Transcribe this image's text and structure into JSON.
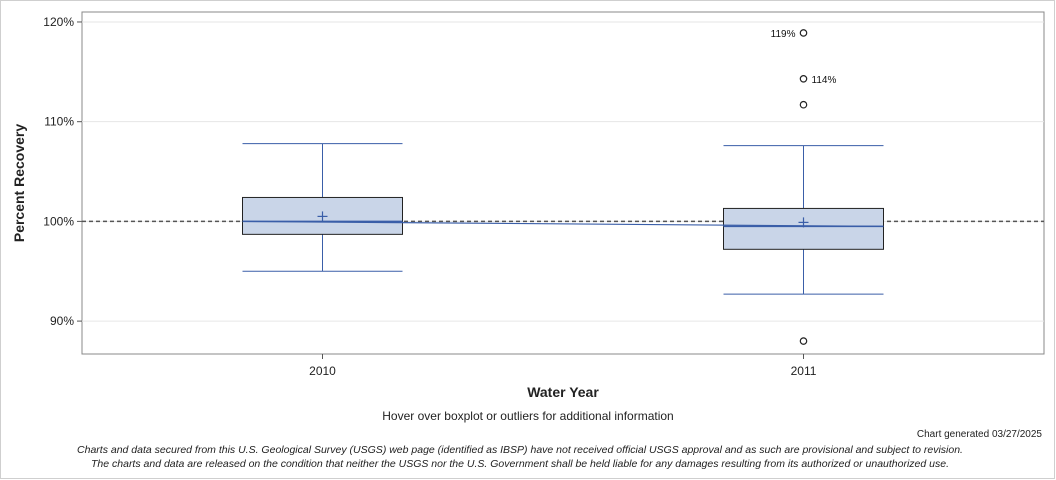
{
  "chart_data": {
    "type": "boxplot",
    "title": "",
    "xlabel": "Water Year",
    "ylabel": "Percent Recovery",
    "ylim": [
      86.7,
      121.0
    ],
    "yticks": [
      90,
      100,
      110,
      120
    ],
    "ytick_labels": [
      "90%",
      "100%",
      "110%",
      "120%"
    ],
    "reference_line": 100,
    "categories": [
      "2010",
      "2011"
    ],
    "boxes": [
      {
        "category": "2010",
        "whisker_low": 95.0,
        "q1": 98.7,
        "median": 100.0,
        "q3": 102.4,
        "whisker_high": 107.8,
        "mean": 100.5,
        "outliers": []
      },
      {
        "category": "2011",
        "whisker_low": 92.7,
        "q1": 97.2,
        "median": 99.5,
        "q3": 101.3,
        "whisker_high": 107.6,
        "mean": 99.9,
        "outliers": [
          {
            "value": 88.0,
            "label": ""
          },
          {
            "value": 111.7,
            "label": ""
          },
          {
            "value": 114.3,
            "label": "114%"
          },
          {
            "value": 118.9,
            "label": "119%"
          }
        ]
      }
    ],
    "mean_line": [
      100.0,
      99.5
    ]
  },
  "footer": {
    "hover_note": "Hover over boxplot or outliers for additional information",
    "generated": "Chart generated 03/27/2025",
    "disclaimer_line1": "Charts and data secured from this U.S. Geological Survey (USGS) web page (identified as IBSP) have not received official USGS approval and as such are provisional and subject to revision.",
    "disclaimer_line2": "The charts and data are released on the condition that neither the USGS nor the U.S. Government shall be held liable for any damages resulting from its authorized or unauthorized use."
  },
  "colors": {
    "box_fill": "#c9d5e8",
    "box_stroke": "#222222",
    "whisker": "#3a5ea8",
    "mean_line": "#3a5ea8",
    "reference": "#555555",
    "grid": "#e6e6e6"
  }
}
